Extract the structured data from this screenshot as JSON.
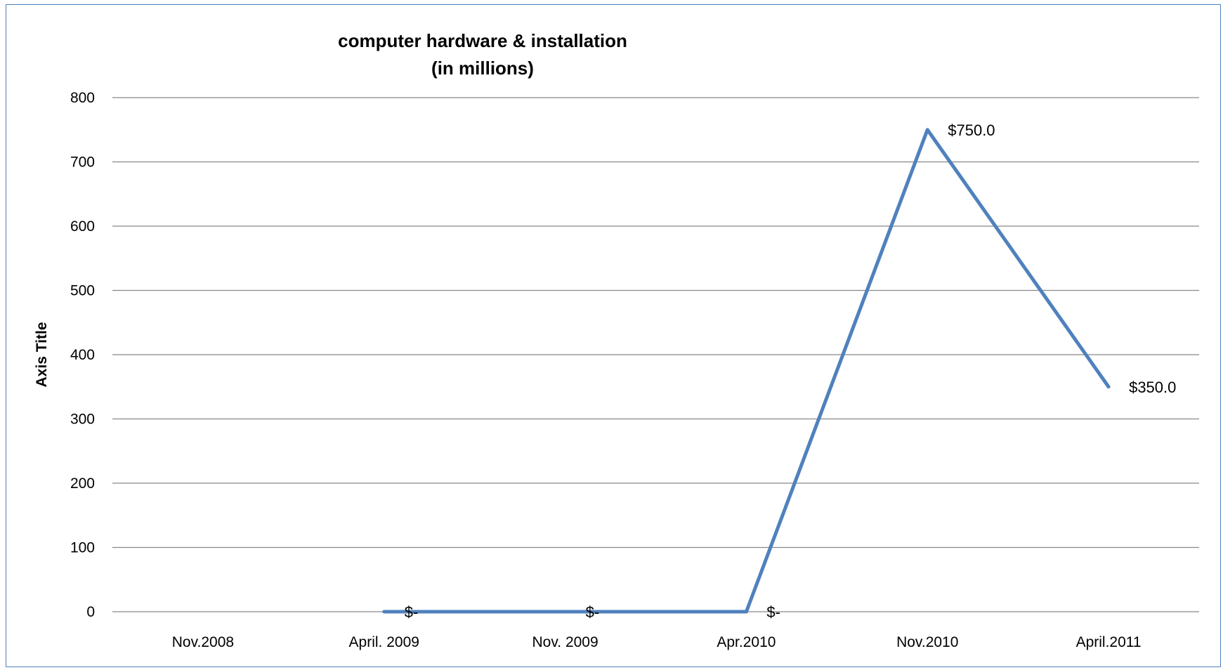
{
  "chart_data": {
    "type": "line",
    "title_lines": [
      "computer hardware & installation",
      "(in millions)"
    ],
    "xlabel": "",
    "ylabel": "Axis Title",
    "categories": [
      "Nov.2008",
      "April. 2009",
      "Nov. 2009",
      "Apr.2010",
      "Nov.2010",
      "April.2011"
    ],
    "series": [
      {
        "values": [
          null,
          0,
          0,
          0,
          750,
          350
        ],
        "data_labels": [
          "",
          "$-",
          "$-",
          "$-",
          "$750.0",
          "$350.0"
        ],
        "color": "#4f81bd"
      }
    ],
    "ylim": [
      0,
      800
    ],
    "yticks": [
      0,
      100,
      200,
      300,
      400,
      500,
      600,
      700,
      800
    ],
    "grid": true,
    "legend": "none"
  }
}
